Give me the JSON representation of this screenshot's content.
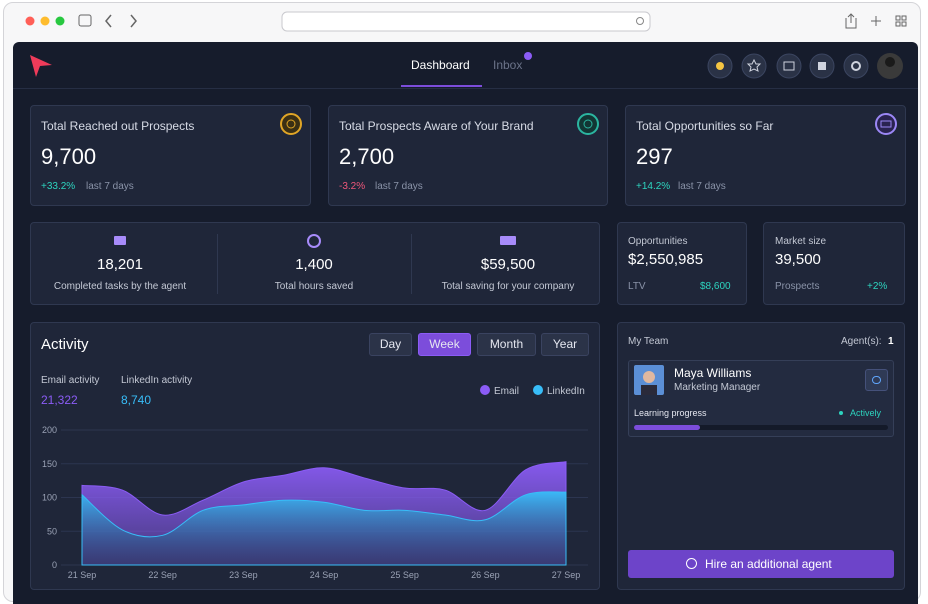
{
  "nav": {
    "tabs": [
      "Dashboard",
      "Inbox"
    ]
  },
  "stats": [
    {
      "title": "Total Reached out Prospects",
      "value": "9,700",
      "change": "+33.2%",
      "period": "last 7 days"
    },
    {
      "title": "Total Prospects Aware of Your Brand",
      "value": "2,700",
      "change": "-3.2%",
      "period": "last 7 days"
    },
    {
      "title": "Total Opportunities so Far",
      "value": "297",
      "change": "+14.2%",
      "period": "last 7 days"
    }
  ],
  "summary": [
    {
      "value": "18,201",
      "label": "Completed tasks by the agent"
    },
    {
      "value": "1,400",
      "label": "Total hours saved"
    },
    {
      "value": "$59,500",
      "label": "Total saving for your company"
    }
  ],
  "opportunities": {
    "title": "Opportunities",
    "value": "$2,550,985",
    "ltv_label": "LTV",
    "ltv": "$8,600"
  },
  "market": {
    "title": "Market size",
    "value": "39,500",
    "sub": "Prospects",
    "change": "+2%"
  },
  "activity": {
    "title": "Activity",
    "periods": [
      "Day",
      "Week",
      "Month",
      "Year"
    ],
    "email_label": "Email activity",
    "email_value": "21,322",
    "linkedin_label": "LinkedIn activity",
    "linkedin_value": "8,740"
  },
  "chart_data": {
    "type": "area",
    "categories": [
      "21 Sep",
      null,
      "22 Sep",
      null,
      "23 Sep",
      null,
      "24 Sep",
      null,
      "25 Sep",
      null,
      "26 Sep",
      null,
      "27 Sep"
    ],
    "series": [
      {
        "name": "Email",
        "color": "#8b5cf6",
        "values": [
          118,
          111,
          74,
          96,
          123,
          133,
          144,
          129,
          114,
          111,
          81,
          141,
          153
        ]
      },
      {
        "name": "LinkedIn",
        "color": "#38bdf8",
        "values": [
          104,
          52,
          44,
          81,
          89,
          96,
          93,
          81,
          81,
          74,
          67,
          104,
          108
        ]
      }
    ],
    "ylim": [
      0,
      200
    ],
    "yticks": [
      0,
      50,
      100,
      150,
      200
    ],
    "grid": true
  },
  "team": {
    "title": "My Team",
    "agents_label": "Agent(s):",
    "agents_count": "1",
    "member": {
      "name": "Maya Williams",
      "role": "Marketing Manager",
      "progress_label": "Learning progress",
      "status": "Actively"
    },
    "button": "Hire an additional agent"
  }
}
